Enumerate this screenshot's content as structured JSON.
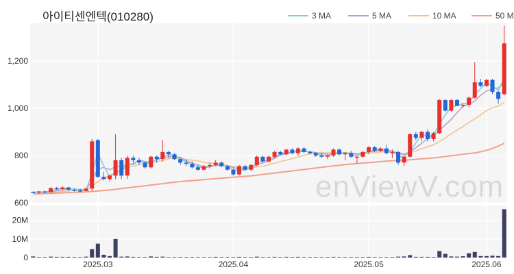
{
  "chart_data": {
    "type": "candlestick",
    "title": "아이티센엔텍(010280)",
    "watermark": "enViewV.com",
    "legend": [
      {
        "name": "3 MA",
        "color": "#7fd0cb"
      },
      {
        "name": "5 MA",
        "color": "#b99bd0"
      },
      {
        "name": "10 MA",
        "color": "#f4c08a"
      },
      {
        "name": "50 MA",
        "color": "#f2a08c"
      }
    ],
    "colors": {
      "up": "#e8302e",
      "down": "#2468d8",
      "volume": "#3d3f63",
      "grid": "#e6e6e6",
      "panel_bg": "#f5f5f5"
    },
    "price_axis": {
      "ylim": [
        600,
        1360
      ],
      "ticks": [
        600,
        800,
        1000,
        1200
      ],
      "tick_labels": [
        "600",
        "800",
        "1,000",
        "1,200"
      ]
    },
    "volume_axis": {
      "ylim": [
        0,
        28
      ],
      "ticks": [
        0,
        10,
        20
      ],
      "tick_labels": [
        "0",
        "10M",
        "20M"
      ]
    },
    "x_ticks": [
      {
        "index": 11,
        "label": "2025.03"
      },
      {
        "index": 34,
        "label": "2025.04"
      },
      {
        "index": 57,
        "label": "2025.05"
      },
      {
        "index": 77,
        "label": "2025.06"
      }
    ],
    "candles": [
      [
        645,
        648,
        640,
        643,
        0.6
      ],
      [
        643,
        650,
        638,
        648,
        0.3
      ],
      [
        648,
        652,
        640,
        645,
        0.3
      ],
      [
        645,
        665,
        643,
        662,
        0.5
      ],
      [
        662,
        667,
        655,
        658,
        0.4
      ],
      [
        658,
        670,
        652,
        665,
        0.4
      ],
      [
        665,
        668,
        650,
        655,
        0.4
      ],
      [
        655,
        660,
        648,
        652,
        0.3
      ],
      [
        652,
        660,
        645,
        650,
        0.3
      ],
      [
        650,
        665,
        648,
        660,
        0.5
      ],
      [
        660,
        870,
        650,
        860,
        4.5
      ],
      [
        865,
        870,
        705,
        710,
        7.5
      ],
      [
        710,
        730,
        695,
        700,
        1.5
      ],
      [
        700,
        720,
        690,
        715,
        0.8
      ],
      [
        715,
        890,
        700,
        780,
        10.0
      ],
      [
        780,
        790,
        700,
        715,
        0.5
      ],
      [
        715,
        800,
        700,
        790,
        0.6
      ],
      [
        790,
        800,
        770,
        780,
        0.4
      ],
      [
        780,
        790,
        760,
        770,
        0.3
      ],
      [
        770,
        775,
        745,
        750,
        0.3
      ],
      [
        750,
        800,
        745,
        795,
        0.6
      ],
      [
        795,
        800,
        770,
        785,
        0.4
      ],
      [
        785,
        865,
        775,
        815,
        0.5
      ],
      [
        815,
        820,
        790,
        805,
        0.3
      ],
      [
        805,
        810,
        780,
        785,
        0.3
      ],
      [
        785,
        790,
        760,
        770,
        0.3
      ],
      [
        770,
        780,
        755,
        765,
        0.3
      ],
      [
        765,
        775,
        745,
        750,
        0.3
      ],
      [
        750,
        760,
        735,
        740,
        0.3
      ],
      [
        740,
        760,
        735,
        755,
        0.3
      ],
      [
        755,
        770,
        745,
        760,
        0.3
      ],
      [
        760,
        780,
        755,
        770,
        0.4
      ],
      [
        770,
        775,
        750,
        755,
        0.3
      ],
      [
        755,
        760,
        735,
        740,
        0.3
      ],
      [
        740,
        745,
        715,
        720,
        0.3
      ],
      [
        720,
        760,
        715,
        755,
        0.4
      ],
      [
        755,
        760,
        735,
        740,
        0.3
      ],
      [
        740,
        765,
        735,
        760,
        0.3
      ],
      [
        760,
        800,
        755,
        795,
        0.5
      ],
      [
        795,
        800,
        770,
        775,
        0.3
      ],
      [
        775,
        800,
        770,
        795,
        0.3
      ],
      [
        795,
        820,
        790,
        815,
        0.4
      ],
      [
        815,
        820,
        800,
        805,
        0.3
      ],
      [
        805,
        830,
        800,
        825,
        0.4
      ],
      [
        825,
        830,
        805,
        810,
        0.3
      ],
      [
        810,
        835,
        800,
        830,
        0.4
      ],
      [
        830,
        835,
        810,
        815,
        0.3
      ],
      [
        815,
        820,
        805,
        810,
        0.3
      ],
      [
        810,
        815,
        795,
        800,
        0.3
      ],
      [
        800,
        810,
        790,
        795,
        0.3
      ],
      [
        795,
        805,
        785,
        800,
        0.3
      ],
      [
        800,
        830,
        795,
        825,
        0.4
      ],
      [
        825,
        830,
        800,
        805,
        0.3
      ],
      [
        805,
        815,
        780,
        810,
        0.3
      ],
      [
        810,
        820,
        790,
        795,
        0.3
      ],
      [
        795,
        800,
        765,
        795,
        0.3
      ],
      [
        795,
        820,
        790,
        815,
        0.3
      ],
      [
        815,
        840,
        805,
        835,
        0.4
      ],
      [
        835,
        840,
        815,
        820,
        0.3
      ],
      [
        820,
        835,
        815,
        830,
        0.3
      ],
      [
        830,
        845,
        805,
        810,
        0.3
      ],
      [
        810,
        825,
        790,
        815,
        0.3
      ],
      [
        815,
        820,
        760,
        770,
        0.5
      ],
      [
        770,
        800,
        755,
        795,
        0.6
      ],
      [
        795,
        895,
        790,
        890,
        1.3
      ],
      [
        890,
        900,
        865,
        875,
        0.4
      ],
      [
        875,
        905,
        860,
        900,
        0.4
      ],
      [
        900,
        910,
        860,
        870,
        0.4
      ],
      [
        870,
        900,
        860,
        895,
        0.3
      ],
      [
        895,
        1040,
        890,
        1035,
        3.5
      ],
      [
        1035,
        1040,
        985,
        990,
        2.0
      ],
      [
        990,
        1040,
        985,
        1035,
        0.6
      ],
      [
        1035,
        1040,
        1010,
        1010,
        0.5
      ],
      [
        1010,
        1020,
        1000,
        1015,
        0.7
      ],
      [
        1015,
        1050,
        1005,
        1045,
        2.3
      ],
      [
        1045,
        1195,
        1040,
        1110,
        3.0
      ],
      [
        1110,
        1125,
        1090,
        1095,
        0.8
      ],
      [
        1095,
        1125,
        1090,
        1120,
        0.8
      ],
      [
        1120,
        1125,
        1060,
        1070,
        1.0
      ],
      [
        1070,
        1075,
        1020,
        1040,
        0.8
      ],
      [
        1060,
        1350,
        1055,
        1275,
        26.0
      ]
    ],
    "moving_averages": {
      "ma3": [
        645,
        645,
        645,
        651,
        655,
        662,
        659,
        659,
        654,
        654,
        723,
        810,
        757,
        708,
        732,
        737,
        762,
        762,
        780,
        767,
        772,
        783,
        795,
        802,
        802,
        787,
        773,
        762,
        752,
        748,
        752,
        762,
        762,
        755,
        738,
        738,
        738,
        752,
        765,
        777,
        782,
        795,
        805,
        815,
        813,
        822,
        818,
        818,
        808,
        802,
        798,
        807,
        810,
        813,
        803,
        800,
        807,
        815,
        823,
        828,
        822,
        818,
        798,
        793,
        818,
        853,
        888,
        882,
        888,
        933,
        972,
        1005,
        1012,
        1020,
        1023,
        1057,
        1083,
        1108,
        1095,
        1077,
        1128
      ],
      "ma5": [
        645,
        645,
        645,
        648,
        651,
        655,
        658,
        659,
        656,
        656,
        694,
        744,
        749,
        740,
        753,
        755,
        760,
        766,
        780,
        775,
        773,
        781,
        791,
        794,
        796,
        792,
        779,
        769,
        760,
        752,
        753,
        757,
        758,
        756,
        749,
        742,
        745,
        750,
        760,
        768,
        778,
        788,
        803,
        807,
        814,
        817,
        818,
        817,
        812,
        808,
        805,
        807,
        808,
        811,
        807,
        806,
        809,
        815,
        818,
        822,
        822,
        820,
        809,
        803,
        817,
        833,
        852,
        872,
        886,
        906,
        930,
        953,
        982,
        1008,
        1018,
        1030,
        1055,
        1073,
        1082,
        1087,
        1105
      ],
      "ma10": [
        645,
        645,
        645,
        645,
        646,
        648,
        650,
        652,
        653,
        654,
        668,
        690,
        705,
        716,
        725,
        738,
        749,
        755,
        762,
        765,
        770,
        774,
        779,
        786,
        790,
        788,
        784,
        780,
        777,
        772,
        768,
        766,
        762,
        758,
        753,
        749,
        747,
        748,
        752,
        755,
        760,
        767,
        775,
        780,
        787,
        794,
        801,
        807,
        811,
        812,
        812,
        812,
        812,
        812,
        811,
        809,
        808,
        810,
        812,
        815,
        816,
        815,
        811,
        808,
        812,
        820,
        829,
        838,
        845,
        859,
        874,
        892,
        908,
        923,
        940,
        955,
        972,
        990,
        1002,
        1010,
        1025
      ],
      "ma50": [
        637,
        638,
        639,
        640,
        641,
        642,
        643,
        644,
        645,
        646,
        648,
        650,
        652,
        654,
        657,
        660,
        663,
        666,
        669,
        672,
        675,
        678,
        681,
        684,
        687,
        690,
        692,
        694,
        696,
        698,
        700,
        702,
        704,
        706,
        708,
        710,
        712,
        714,
        717,
        720,
        723,
        726,
        729,
        732,
        735,
        738,
        741,
        744,
        747,
        750,
        753,
        756,
        759,
        762,
        764,
        766,
        768,
        770,
        772,
        774,
        776,
        778,
        779,
        780,
        782,
        784,
        786,
        788,
        790,
        793,
        796,
        799,
        802,
        805,
        808,
        811,
        816,
        822,
        830,
        840,
        852
      ]
    }
  }
}
